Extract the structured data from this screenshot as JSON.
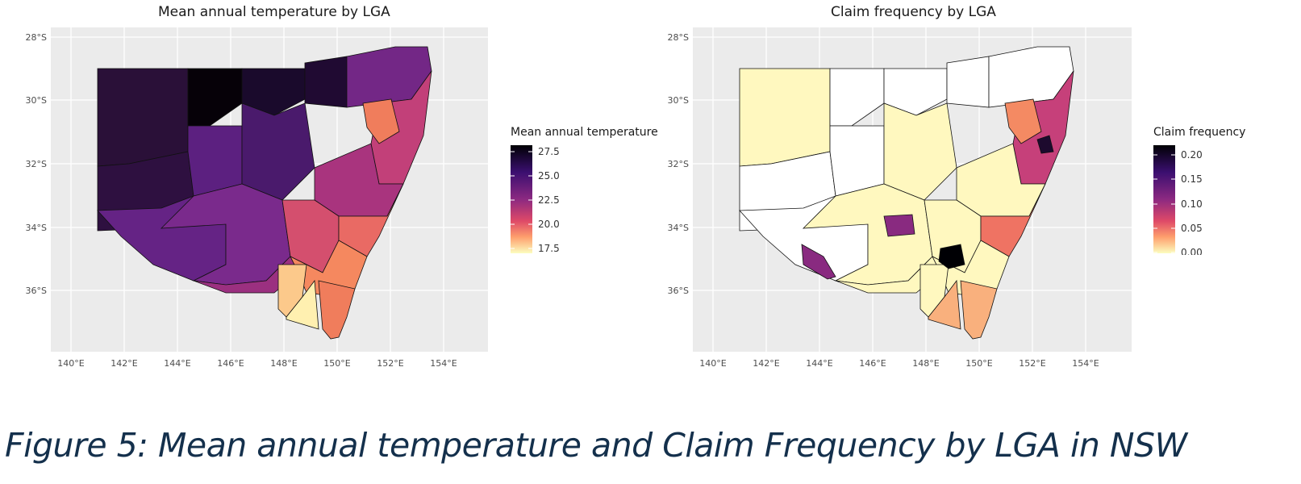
{
  "caption": "Figure 5: Mean annual temperature and Claim Frequency by LGA in NSW",
  "x_ticks": [
    "140°E",
    "142°E",
    "144°E",
    "146°E",
    "148°E",
    "150°E",
    "152°E",
    "154°E"
  ],
  "y_ticks": [
    "28°S",
    "30°S",
    "32°S",
    "34°S",
    "36°S"
  ],
  "maps": [
    {
      "title": "Mean annual temperature by LGA",
      "legend_title": "Mean annual temperature",
      "legend_ticks": [
        "27.5",
        "25.0",
        "22.5",
        "20.0",
        "17.5"
      ],
      "scale": "magma (reversed)",
      "colors": {
        "low": "#fde9a8",
        "mid_low": "#f5885f",
        "mid": "#c8407a",
        "mid_high": "#7a2a8c",
        "high": "#000004"
      }
    },
    {
      "title": "Claim frequency by LGA",
      "legend_title": "Claim frequency",
      "legend_ticks": [
        "0.20",
        "0.15",
        "0.10",
        "0.05",
        "0.00"
      ],
      "scale": "magma (reversed)",
      "colors": {
        "zero_claims": "#ffffff",
        "low": "#fff8bf",
        "mid_low": "#f9b07d",
        "mid": "#e45a6a",
        "high": "#000004"
      }
    }
  ]
}
